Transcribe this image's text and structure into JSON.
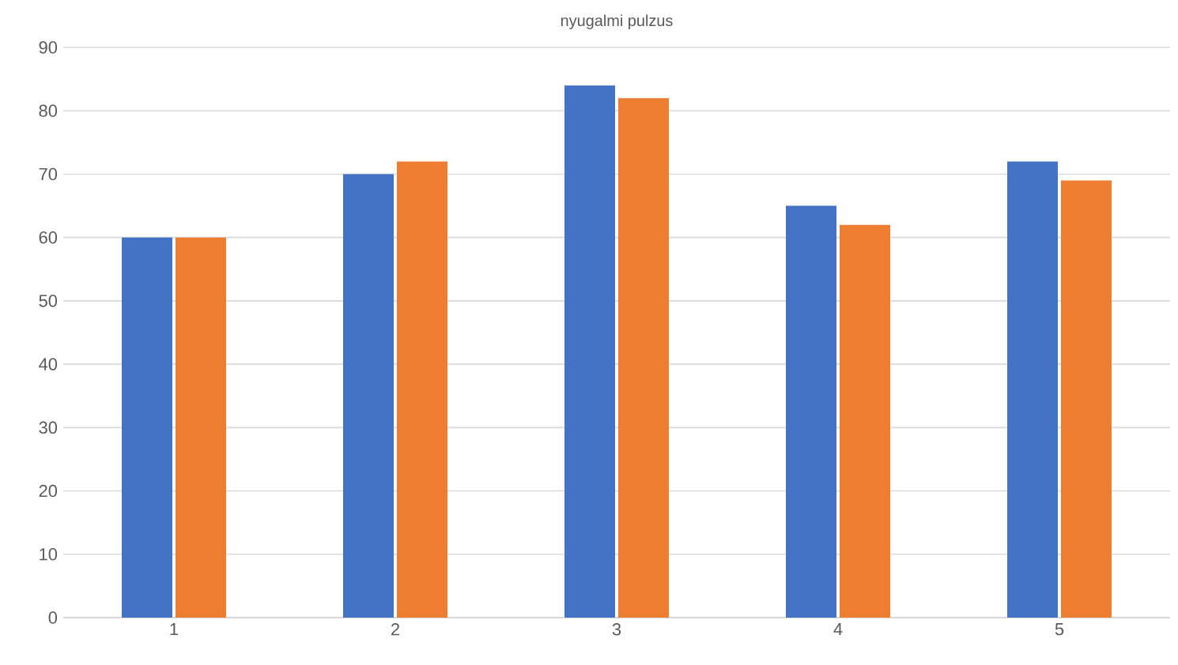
{
  "chart_data": {
    "type": "bar",
    "title": "nyugalmi pulzus",
    "categories": [
      "1",
      "2",
      "3",
      "4",
      "5"
    ],
    "series": [
      {
        "color": "#4472c4",
        "values": [
          60,
          70,
          84,
          65,
          72
        ]
      },
      {
        "color": "#ed7d31",
        "values": [
          60,
          72,
          82,
          62,
          69
        ]
      }
    ],
    "ylim": [
      0,
      90
    ],
    "yticks": [
      0,
      10,
      20,
      30,
      40,
      50,
      60,
      70,
      80,
      90
    ],
    "grid": "y"
  }
}
